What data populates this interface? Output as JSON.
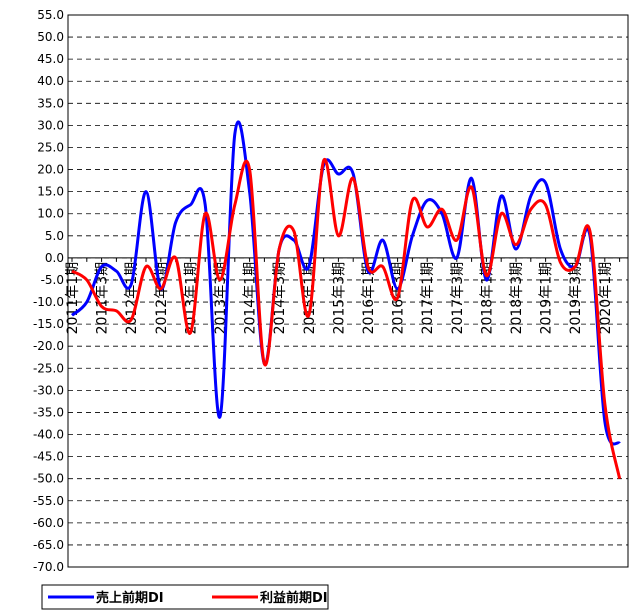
{
  "chart_data": {
    "type": "line",
    "categories": [
      "2011年1期",
      null,
      "2011年3期",
      null,
      "2012年1期",
      null,
      "2012年3期",
      null,
      "2013年1期",
      null,
      "2013年3期",
      null,
      "2014年1期",
      null,
      "2014年3期",
      null,
      "2015年1期",
      null,
      "2015年3期",
      null,
      "2016年1期",
      null,
      "2016年3期",
      null,
      "2017年1期",
      null,
      "2017年3期",
      null,
      "2018年1期",
      null,
      "2018年3期",
      null,
      "2019年1期",
      null,
      "2019年3期",
      null,
      "2020年1期",
      null
    ],
    "series": [
      {
        "name": "売上前期DI",
        "color": "#0000ff",
        "values": [
          -13,
          -10,
          -2,
          -3,
          -6,
          15,
          -7,
          8,
          12,
          12,
          -36,
          28,
          15,
          -24,
          2,
          4,
          -2,
          21,
          19,
          19,
          -3,
          4,
          -7,
          5,
          13,
          10,
          0,
          18,
          -5,
          14,
          2,
          14,
          17,
          2,
          -2,
          5,
          -37,
          -42
        ]
      },
      {
        "name": "利益前期DI",
        "color": "#ff0000",
        "values": [
          -3,
          -5,
          -11,
          -12,
          -14,
          -2,
          -7,
          0,
          -17,
          10,
          -5,
          12,
          20,
          -24,
          2,
          6,
          -13,
          22,
          5,
          18,
          -2,
          -2,
          -9,
          13,
          7,
          11,
          4,
          16,
          -4,
          10,
          3,
          11,
          12,
          -1,
          -2,
          6,
          -33,
          -50
        ]
      }
    ],
    "ylim": [
      -70,
      55
    ],
    "yticks": [
      {
        "value": -70,
        "label": "-70.0"
      },
      {
        "value": -65,
        "label": "-65.0"
      },
      {
        "value": -60,
        "label": "-60.0"
      },
      {
        "value": -55,
        "label": "-55.0"
      },
      {
        "value": -50,
        "label": "-50.0"
      },
      {
        "value": -45,
        "label": "-45.0"
      },
      {
        "value": -40,
        "label": "-40.0"
      },
      {
        "value": -35,
        "label": "-35.0"
      },
      {
        "value": -30,
        "label": "-30.0"
      },
      {
        "value": -25,
        "label": "-25.0"
      },
      {
        "value": -20,
        "label": "-20.0"
      },
      {
        "value": -15,
        "label": "-15.0"
      },
      {
        "value": -10,
        "label": "-10.0"
      },
      {
        "value": -5,
        "label": "-5.0"
      },
      {
        "value": 0,
        "label": "0.0"
      },
      {
        "value": 5,
        "label": "5.0"
      },
      {
        "value": 10,
        "label": "10.0"
      },
      {
        "value": 15,
        "label": "15.0"
      },
      {
        "value": 20,
        "label": "20.0"
      },
      {
        "value": 25,
        "label": "25.0"
      },
      {
        "value": 30,
        "label": "30.0"
      },
      {
        "value": 35,
        "label": "35.0"
      },
      {
        "value": 40,
        "label": "40.0"
      },
      {
        "value": 45,
        "label": "45.0"
      },
      {
        "value": 50,
        "label": "50.0"
      },
      {
        "value": 55,
        "label": "55.0"
      }
    ],
    "grid": true,
    "legend": "bottom"
  }
}
